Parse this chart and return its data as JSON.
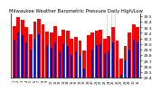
{
  "title": "Milwaukee Weather Barometric Pressure Daily High/Low",
  "num_days": 31,
  "high_values": [
    30.32,
    30.48,
    30.44,
    30.3,
    30.18,
    30.4,
    30.45,
    30.36,
    30.22,
    30.2,
    30.32,
    30.14,
    30.26,
    30.24,
    30.1,
    30.12,
    30.06,
    29.88,
    30.16,
    30.2,
    30.24,
    30.26,
    30.1,
    30.14,
    30.3,
    30.06,
    29.74,
    29.96,
    30.2,
    30.36,
    30.3
  ],
  "low_values": [
    30.08,
    30.2,
    30.16,
    30.02,
    29.9,
    30.1,
    30.18,
    30.08,
    29.98,
    29.93,
    30.03,
    29.86,
    30.0,
    29.96,
    29.8,
    29.86,
    29.78,
    29.55,
    29.88,
    29.9,
    29.98,
    30.0,
    29.83,
    29.86,
    30.03,
    29.76,
    29.45,
    29.7,
    29.9,
    30.08,
    30.03
  ],
  "bar_color_high": "#FF0000",
  "bar_color_low": "#0000CC",
  "background_color": "#FFFFFF",
  "ymin": 29.4,
  "ymax": 30.55,
  "ytick_labels": [
    "29.4",
    "29.5",
    "29.6",
    "29.7",
    "29.8",
    "29.9",
    "30.0",
    "30.1",
    "30.2",
    "30.3",
    "30.4",
    "30.5"
  ],
  "ytick_values": [
    29.4,
    29.5,
    29.6,
    29.7,
    29.8,
    29.9,
    30.0,
    30.1,
    30.2,
    30.3,
    30.4,
    30.5
  ],
  "ylabel_fontsize": 3.2,
  "title_fontsize": 3.8,
  "bar_width": 0.4,
  "dotted_days": [
    23,
    24,
    25
  ],
  "dot_line_color": "#888888"
}
